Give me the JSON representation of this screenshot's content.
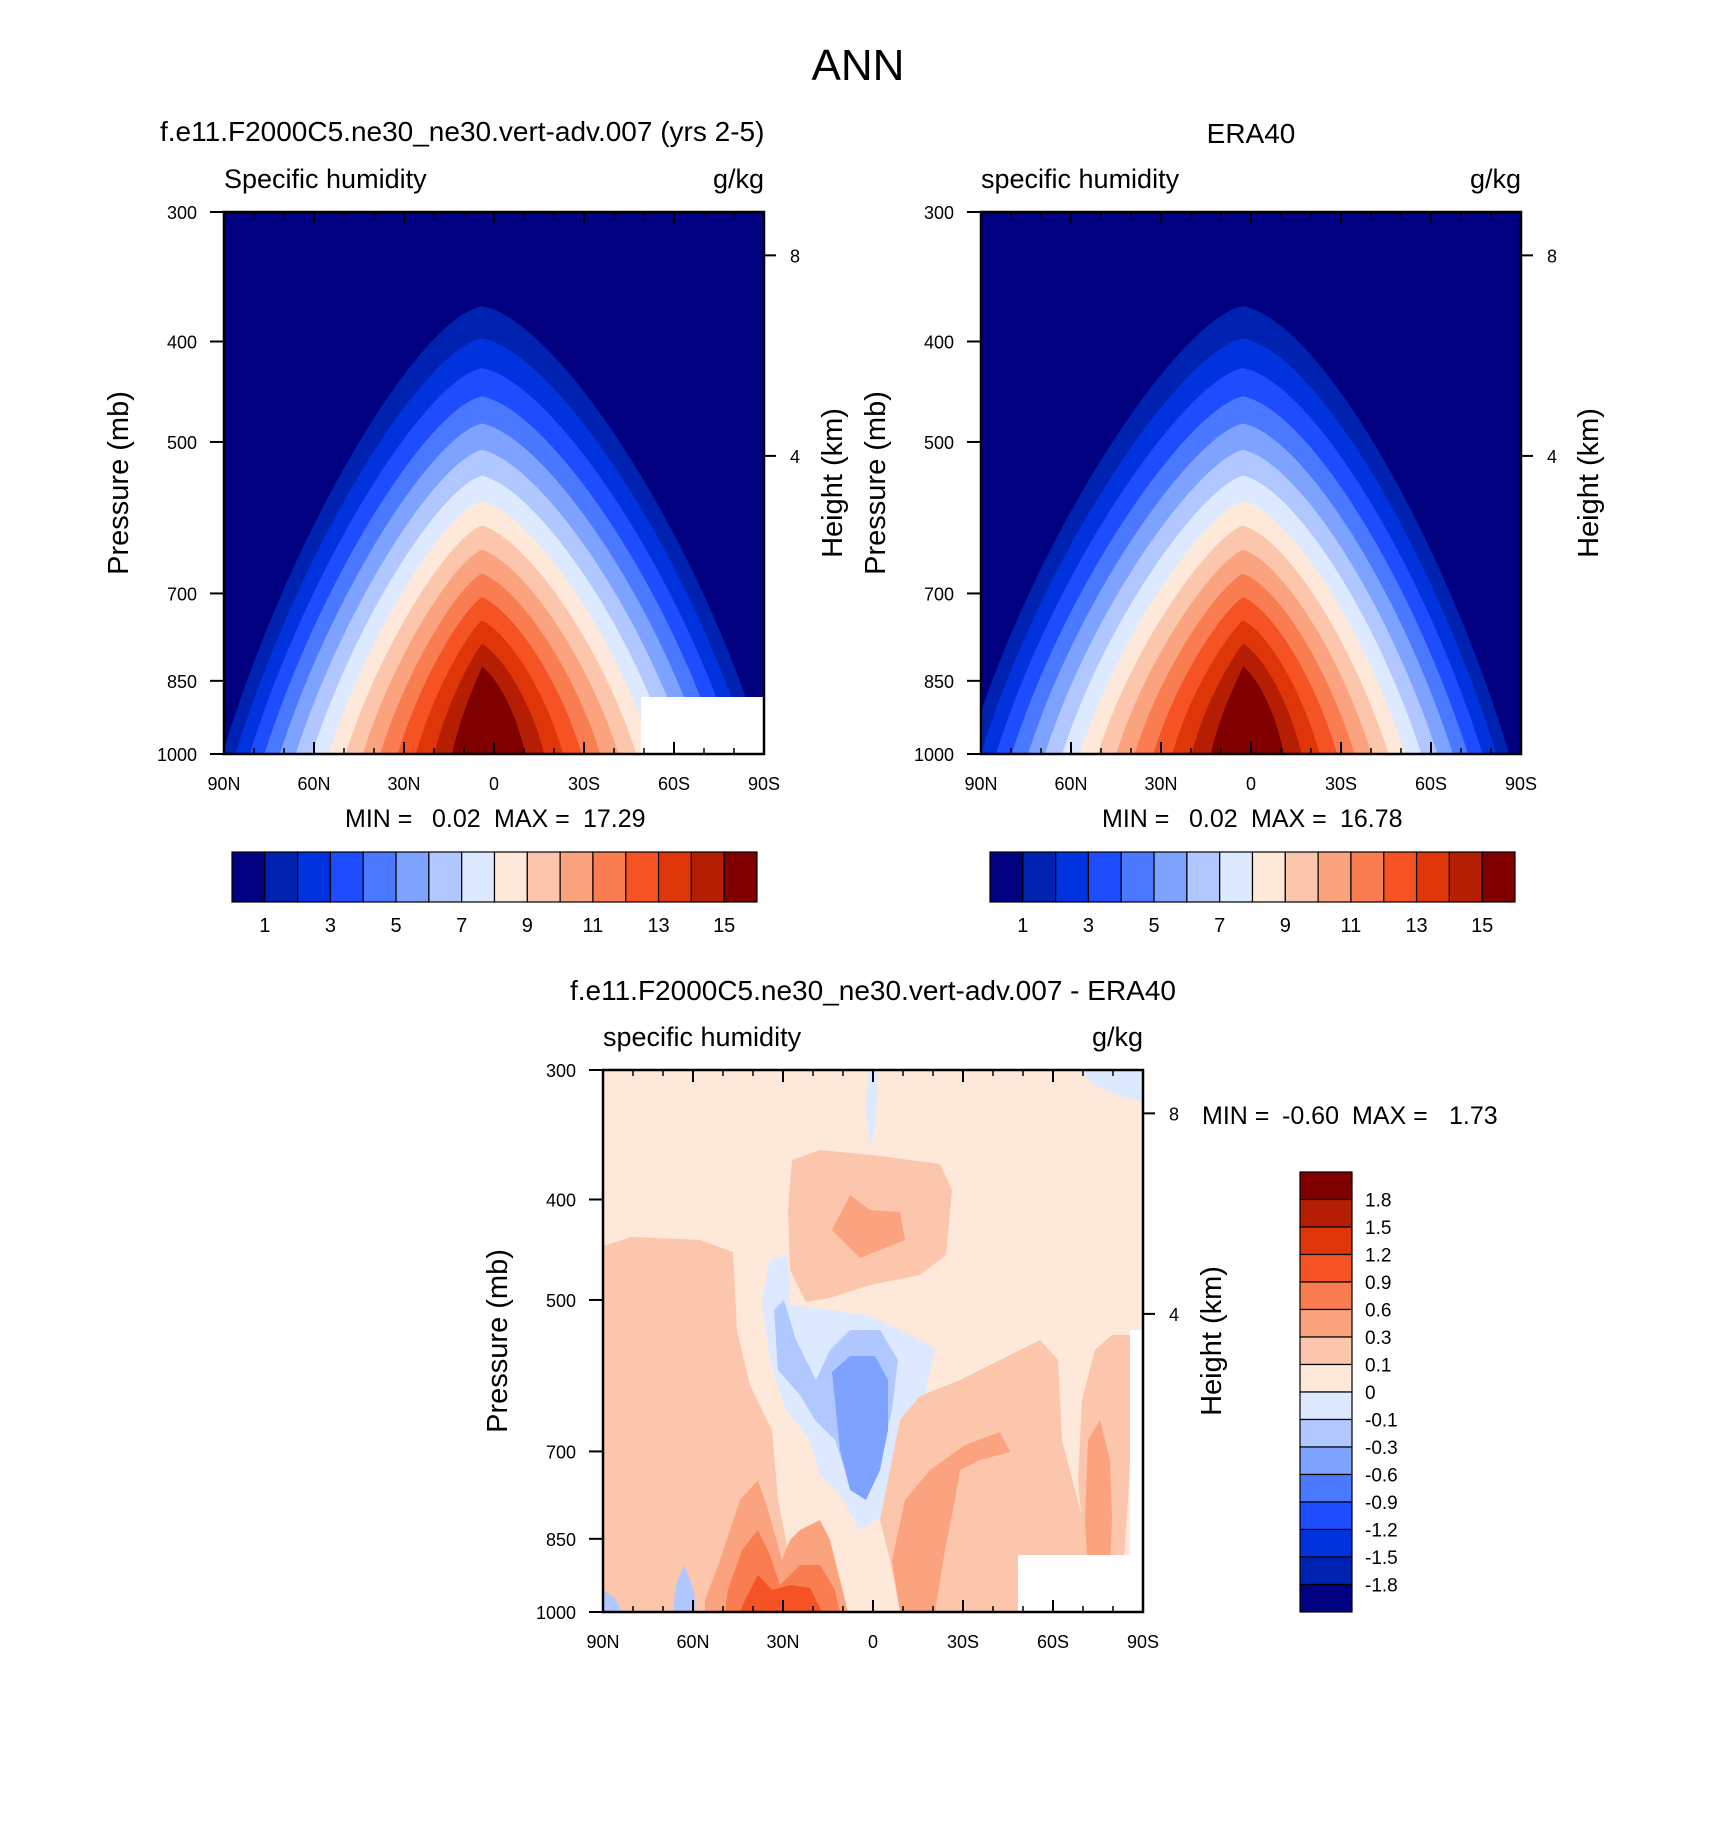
{
  "figure": {
    "title": "ANN"
  },
  "colors": {
    "abs_palette": [
      "#000080",
      "#0022b0",
      "#0033dd",
      "#1d4dff",
      "#4a78ff",
      "#7ea2ff",
      "#b0c8ff",
      "#dde9ff",
      "#fde8da",
      "#fcc6ad",
      "#fba37e",
      "#f97d51",
      "#f55323",
      "#df3609",
      "#b61e04",
      "#800000"
    ],
    "diff_palette": [
      "#000080",
      "#0022b0",
      "#0033dd",
      "#1d4dff",
      "#4a78ff",
      "#7ea2ff",
      "#b0c8ff",
      "#dde9ff",
      "#fde8da",
      "#fcc6ad",
      "#fba37e",
      "#f97d51",
      "#f55323",
      "#df3609",
      "#b61e04",
      "#800000"
    ]
  },
  "chart_data": [
    {
      "type": "heatmap",
      "title": "f.e11.F2000C5.ne30_ne30.vert-adv.007 (yrs 2-5)",
      "left_label": "Specific humidity",
      "units": "g/kg",
      "xlabel": "",
      "ylabel": "Pressure (mb)",
      "ylabel_right": "Height (km)",
      "x_ticks": [
        "90N",
        "60N",
        "30N",
        "0",
        "30S",
        "60S",
        "90S"
      ],
      "x_range": [
        90,
        -90
      ],
      "y_ticks": [
        300,
        400,
        500,
        700,
        850,
        1000
      ],
      "y_range": [
        300,
        1000
      ],
      "y_scale": "log",
      "right_ticks": [
        "8",
        "4"
      ],
      "min_label": "MIN =",
      "min_value": "0.02",
      "max_label": "MAX =",
      "max_value": "17.29",
      "colorbar_labels": [
        "1",
        "3",
        "5",
        "7",
        "9",
        "11",
        "13",
        "15"
      ],
      "values": {
        "peak_latitude": 0,
        "surface_max": 17.29,
        "min": 0.02
      }
    },
    {
      "type": "heatmap",
      "title": "ERA40",
      "left_label": "specific humidity",
      "units": "g/kg",
      "xlabel": "",
      "ylabel": "Pressure (mb)",
      "ylabel_right": "Height (km)",
      "x_ticks": [
        "90N",
        "60N",
        "30N",
        "0",
        "30S",
        "60S",
        "90S"
      ],
      "x_range": [
        90,
        -90
      ],
      "y_ticks": [
        300,
        400,
        500,
        700,
        850,
        1000
      ],
      "y_range": [
        300,
        1000
      ],
      "y_scale": "log",
      "right_ticks": [
        "8",
        "4"
      ],
      "min_label": "MIN =",
      "min_value": "0.02",
      "max_label": "MAX =",
      "max_value": "16.78",
      "colorbar_labels": [
        "1",
        "3",
        "5",
        "7",
        "9",
        "11",
        "13",
        "15"
      ],
      "values": {
        "peak_latitude": 0,
        "surface_max": 16.78,
        "min": 0.02
      }
    },
    {
      "type": "heatmap",
      "title": "f.e11.F2000C5.ne30_ne30.vert-adv.007 - ERA40",
      "left_label": "specific humidity",
      "units": "g/kg",
      "xlabel": "",
      "ylabel": "Pressure (mb)",
      "ylabel_right": "Height (km)",
      "x_ticks": [
        "90N",
        "60N",
        "30N",
        "0",
        "30S",
        "60S",
        "90S"
      ],
      "x_range": [
        90,
        -90
      ],
      "y_ticks": [
        300,
        400,
        500,
        700,
        850,
        1000
      ],
      "y_range": [
        300,
        1000
      ],
      "y_scale": "log",
      "right_ticks": [
        "8",
        "4"
      ],
      "min_label": "MIN =",
      "min_value": "-0.60",
      "max_label": "MAX =",
      "max_value": "1.73",
      "colorbar_labels": [
        "1.8",
        "1.5",
        "1.2",
        "0.9",
        "0.6",
        "0.3",
        "0.1",
        "0",
        "-0.1",
        "-0.3",
        "-0.6",
        "-0.9",
        "-1.2",
        "-1.5",
        "-1.8"
      ]
    }
  ]
}
